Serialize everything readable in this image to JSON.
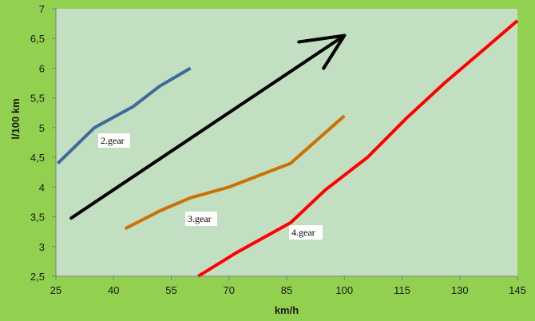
{
  "chart_data": {
    "type": "line",
    "xlabel": "km/h",
    "ylabel": "l/100 km",
    "xlim": [
      25,
      145
    ],
    "ylim": [
      2.5,
      7
    ],
    "x_ticks": [
      "25",
      "40",
      "55",
      "70",
      "85",
      "100",
      "115",
      "130",
      "145"
    ],
    "y_ticks": [
      "2,5",
      "3",
      "3,5",
      "4",
      "4,5",
      "5",
      "5,5",
      "6",
      "6,5",
      "7"
    ],
    "grid": false,
    "series": [
      {
        "name": "2.gear",
        "color": "#3d6b9a",
        "points": [
          [
            25.5,
            4.4
          ],
          [
            35,
            5.0
          ],
          [
            45,
            5.35
          ],
          [
            52,
            5.7
          ],
          [
            60,
            6.0
          ]
        ]
      },
      {
        "name": "3.gear",
        "color": "#cc7000",
        "points": [
          [
            43,
            3.3
          ],
          [
            52,
            3.6
          ],
          [
            60,
            3.82
          ],
          [
            70,
            4.0
          ],
          [
            78,
            4.2
          ],
          [
            86,
            4.4
          ],
          [
            100,
            5.2
          ]
        ]
      },
      {
        "name": "4.gear",
        "color": "#ff0000",
        "points": [
          [
            62,
            2.5
          ],
          [
            72,
            2.9
          ],
          [
            86,
            3.4
          ],
          [
            95,
            3.95
          ],
          [
            106,
            4.5
          ],
          [
            116,
            5.15
          ],
          [
            126,
            5.75
          ],
          [
            136,
            6.3
          ],
          [
            145,
            6.8
          ]
        ]
      }
    ],
    "labels": [
      {
        "text": "2.gear",
        "series": 0
      },
      {
        "text": "3.gear",
        "series": 1
      },
      {
        "text": "4.gear",
        "series": 2
      }
    ],
    "trend_arrow": {
      "color": "#000000",
      "from": [
        29,
        3.48
      ],
      "to": [
        100,
        6.55
      ]
    }
  }
}
